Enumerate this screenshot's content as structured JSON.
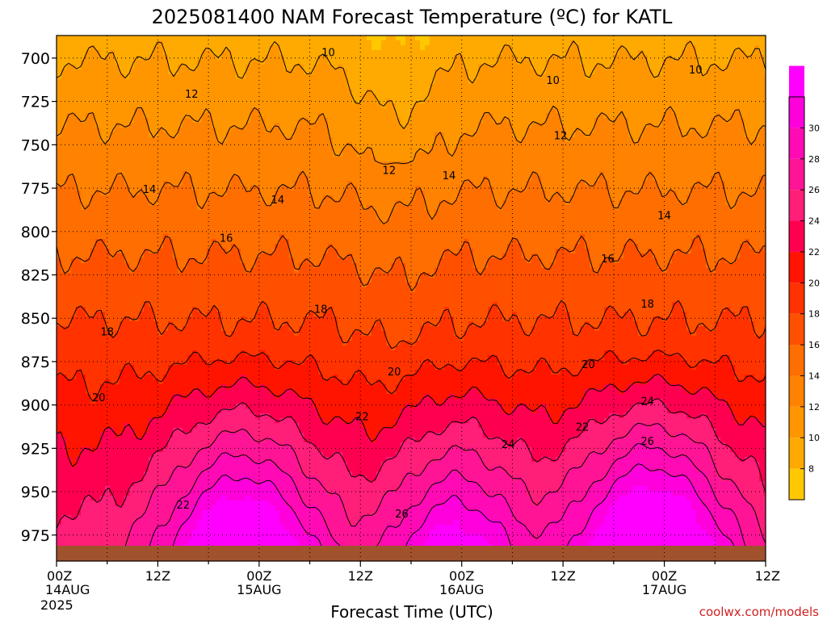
{
  "chart_data": {
    "type": "heatmap",
    "title": "2025081400 NAM Forecast Temperature (ºC) for KATL",
    "xlabel": "Forecast Time (UTC)",
    "ylabel": "",
    "credit": "coolwx.com/models",
    "x_ticks": [
      {
        "hour": 0,
        "label": "00Z",
        "sub": "14AUG",
        "sub2": "2025"
      },
      {
        "hour": 12,
        "label": "12Z",
        "sub": "",
        "sub2": ""
      },
      {
        "hour": 24,
        "label": "00Z",
        "sub": "15AUG",
        "sub2": ""
      },
      {
        "hour": 36,
        "label": "12Z",
        "sub": "",
        "sub2": ""
      },
      {
        "hour": 48,
        "label": "00Z",
        "sub": "16AUG",
        "sub2": ""
      },
      {
        "hour": 60,
        "label": "12Z",
        "sub": "",
        "sub2": ""
      },
      {
        "hour": 72,
        "label": "00Z",
        "sub": "17AUG",
        "sub2": ""
      },
      {
        "hour": 84,
        "label": "12Z",
        "sub": "",
        "sub2": ""
      }
    ],
    "xlim": [
      0,
      84
    ],
    "y_ticks": [
      700,
      725,
      750,
      775,
      800,
      825,
      850,
      875,
      900,
      925,
      950,
      975
    ],
    "ylim": [
      687,
      990
    ],
    "y_inverted": true,
    "colorbar": {
      "labels": [
        8,
        10,
        12,
        14,
        16,
        18,
        20,
        22,
        24,
        26,
        28,
        30
      ],
      "range": [
        6,
        32
      ],
      "colors": [
        "#ffc800",
        "#ffaa00",
        "#ff9600",
        "#ff8200",
        "#ff6e00",
        "#ff5000",
        "#ff3200",
        "#ff1400",
        "#ff0050",
        "#ff1e78",
        "#ff1496",
        "#ff0ab4",
        "#ff00dc",
        "#ff00ff"
      ]
    },
    "contour_labels": [
      {
        "text": "10",
        "hour": 32.2,
        "p": 697
      },
      {
        "text": "10",
        "hour": 58.8,
        "p": 713
      },
      {
        "text": "10",
        "hour": 75.7,
        "p": 707
      },
      {
        "text": "12",
        "hour": 16.0,
        "p": 721
      },
      {
        "text": "12",
        "hour": 59.7,
        "p": 745
      },
      {
        "text": "12",
        "hour": 39.4,
        "p": 765
      },
      {
        "text": "14",
        "hour": 11.0,
        "p": 776
      },
      {
        "text": "14",
        "hour": 26.2,
        "p": 782
      },
      {
        "text": "14",
        "hour": 46.5,
        "p": 768
      },
      {
        "text": "14",
        "hour": 72.0,
        "p": 791
      },
      {
        "text": "16",
        "hour": 20.1,
        "p": 804
      },
      {
        "text": "16",
        "hour": 65.3,
        "p": 816
      },
      {
        "text": "18",
        "hour": 6.0,
        "p": 858
      },
      {
        "text": "18",
        "hour": 31.3,
        "p": 845
      },
      {
        "text": "18",
        "hour": 70.0,
        "p": 842
      },
      {
        "text": "20",
        "hour": 5.0,
        "p": 896
      },
      {
        "text": "20",
        "hour": 40.0,
        "p": 881
      },
      {
        "text": "20",
        "hour": 63.0,
        "p": 877
      },
      {
        "text": "22",
        "hour": 36.2,
        "p": 907
      },
      {
        "text": "22",
        "hour": 62.3,
        "p": 913
      },
      {
        "text": "22",
        "hour": 15.0,
        "p": 958
      },
      {
        "text": "24",
        "hour": 53.5,
        "p": 923
      },
      {
        "text": "24",
        "hour": 70.0,
        "p": 898
      },
      {
        "text": "26",
        "hour": 40.9,
        "p": 963
      },
      {
        "text": "26",
        "hour": 70.0,
        "p": 921
      }
    ]
  }
}
